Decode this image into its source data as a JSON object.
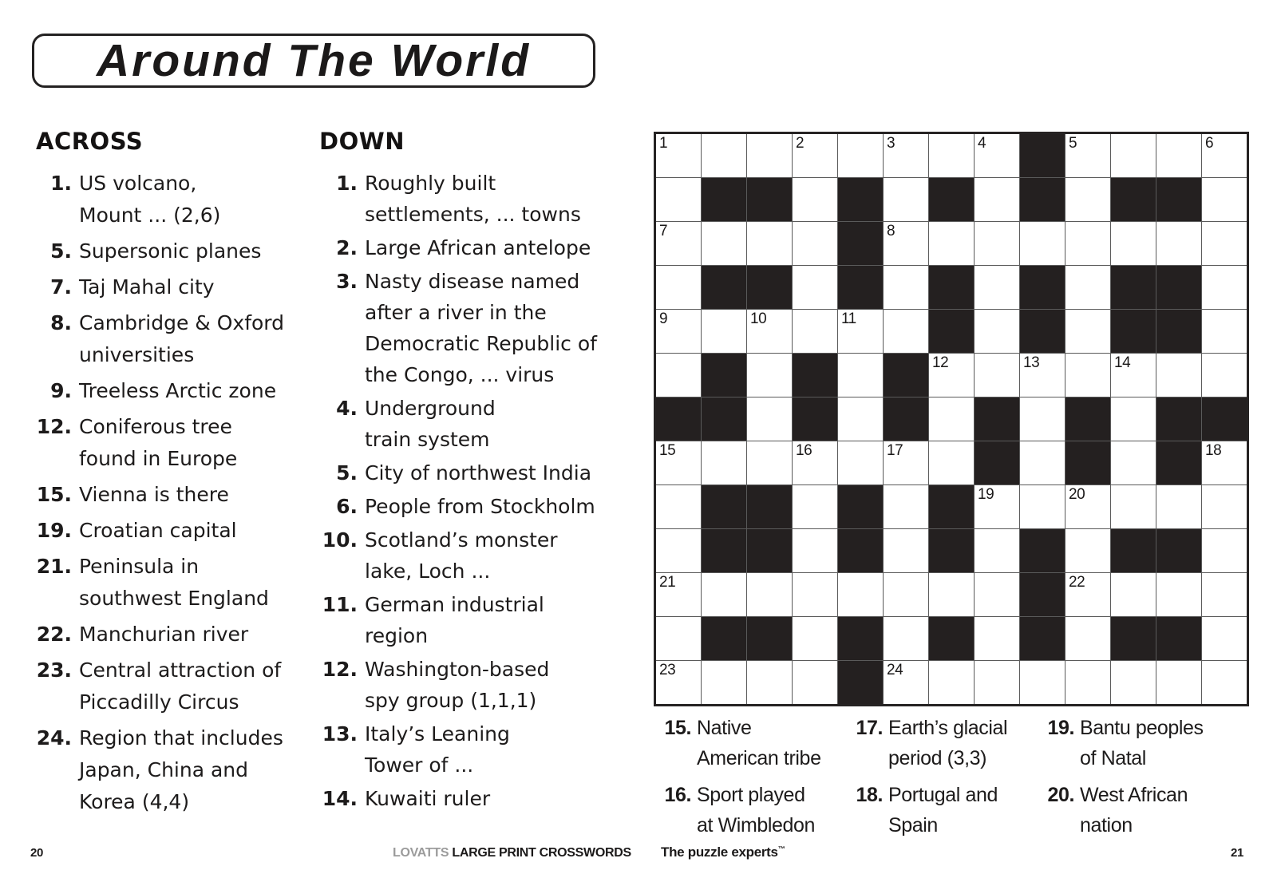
{
  "title": "Around The World",
  "across": {
    "header": "ACROSS",
    "clues": [
      {
        "num": "1.",
        "lines": [
          "US volcano,",
          "Mount ... (2,6)"
        ]
      },
      {
        "num": "5.",
        "lines": [
          "Supersonic planes"
        ]
      },
      {
        "num": "7.",
        "lines": [
          "Taj Mahal city"
        ]
      },
      {
        "num": "8.",
        "lines": [
          "Cambridge & Oxford",
          "universities"
        ]
      },
      {
        "num": "9.",
        "lines": [
          "Treeless Arctic zone"
        ]
      },
      {
        "num": "12.",
        "lines": [
          "Coniferous tree",
          "found in Europe"
        ]
      },
      {
        "num": "15.",
        "lines": [
          "Vienna is there"
        ]
      },
      {
        "num": "19.",
        "lines": [
          "Croatian capital"
        ]
      },
      {
        "num": "21.",
        "lines": [
          "Peninsula in",
          "southwest England"
        ]
      },
      {
        "num": "22.",
        "lines": [
          "Manchurian river"
        ]
      },
      {
        "num": "23.",
        "lines": [
          "Central attraction of",
          "Piccadilly Circus"
        ]
      },
      {
        "num": "24.",
        "lines": [
          "Region that includes",
          "Japan, China and",
          "Korea (4,4)"
        ]
      }
    ]
  },
  "down": {
    "header": "DOWN",
    "clues": [
      {
        "num": "1.",
        "lines": [
          "Roughly built",
          "settlements, ... towns"
        ]
      },
      {
        "num": "2.",
        "lines": [
          "Large African antelope"
        ]
      },
      {
        "num": "3.",
        "lines": [
          "Nasty disease named",
          "after a river in the",
          "Democratic Republic of",
          "the Congo, ... virus"
        ]
      },
      {
        "num": "4.",
        "lines": [
          "Underground",
          "train system"
        ]
      },
      {
        "num": "5.",
        "lines": [
          "City of northwest India"
        ]
      },
      {
        "num": "6.",
        "lines": [
          "People from Stockholm"
        ]
      },
      {
        "num": "10.",
        "lines": [
          "Scotland’s monster",
          "lake, Loch ..."
        ]
      },
      {
        "num": "11.",
        "lines": [
          "German industrial",
          "region"
        ]
      },
      {
        "num": "12.",
        "lines": [
          "Washington-based",
          "spy group (1,1,1)"
        ]
      },
      {
        "num": "13.",
        "lines": [
          "Italy’s Leaning",
          "Tower of ..."
        ]
      },
      {
        "num": "14.",
        "lines": [
          "Kuwaiti ruler"
        ]
      }
    ]
  },
  "bottom_clues": {
    "col1": [
      {
        "num": "15.",
        "lines": [
          "Native",
          "American tribe"
        ]
      },
      {
        "num": "16.",
        "lines": [
          "Sport played",
          "at Wimbledon"
        ]
      }
    ],
    "col2": [
      {
        "num": "17.",
        "lines": [
          "Earth’s glacial",
          "period (3,3)"
        ]
      },
      {
        "num": "18.",
        "lines": [
          "Portugal and",
          "Spain"
        ]
      }
    ],
    "col3": [
      {
        "num": "19.",
        "lines": [
          "Bantu peoples",
          "of Natal"
        ]
      },
      {
        "num": "20.",
        "lines": [
          "West African",
          "nation"
        ]
      }
    ]
  },
  "grid": {
    "size": 13,
    "rows": [
      "........#....",
      ".##.#.#.#.##.",
      "....#........",
      ".##.#.#.#.##.",
      "......#.#.##.",
      ".#.#.#.......",
      "##.#.#.#.#.##",
      ".......#.#.#.",
      ".##.#.#......",
      ".##.#.#.#.##.",
      "........#....",
      ".##.#.#.#.##.",
      "....#........"
    ],
    "numbers": {
      "1,1": "1",
      "1,4": "2",
      "1,6": "3",
      "1,8": "4",
      "1,10": "5",
      "1,13": "6",
      "3,1": "7",
      "3,6": "8",
      "5,1": "9",
      "5,3": "10",
      "5,5": "11",
      "6,7": "12",
      "6,9": "13",
      "6,11": "14",
      "8,1": "15",
      "8,4": "16",
      "8,6": "17",
      "8,13": "18",
      "9,8": "19",
      "9,10": "20",
      "11,1": "21",
      "11,10": "22",
      "13,1": "23",
      "13,6": "24"
    }
  },
  "footer": {
    "page_left": "20",
    "brand_light": "LOVATTS",
    "brand_bold": "LARGE PRINT CROSSWORDS",
    "tagline": "The puzzle experts",
    "trademark": "™",
    "page_right": "21"
  },
  "colors": {
    "paper": "#ffffff",
    "ink": "#1d1b1b",
    "block": "#242020",
    "grid_line": "#5a5a5a",
    "brand_gray": "#9b9b9b"
  }
}
